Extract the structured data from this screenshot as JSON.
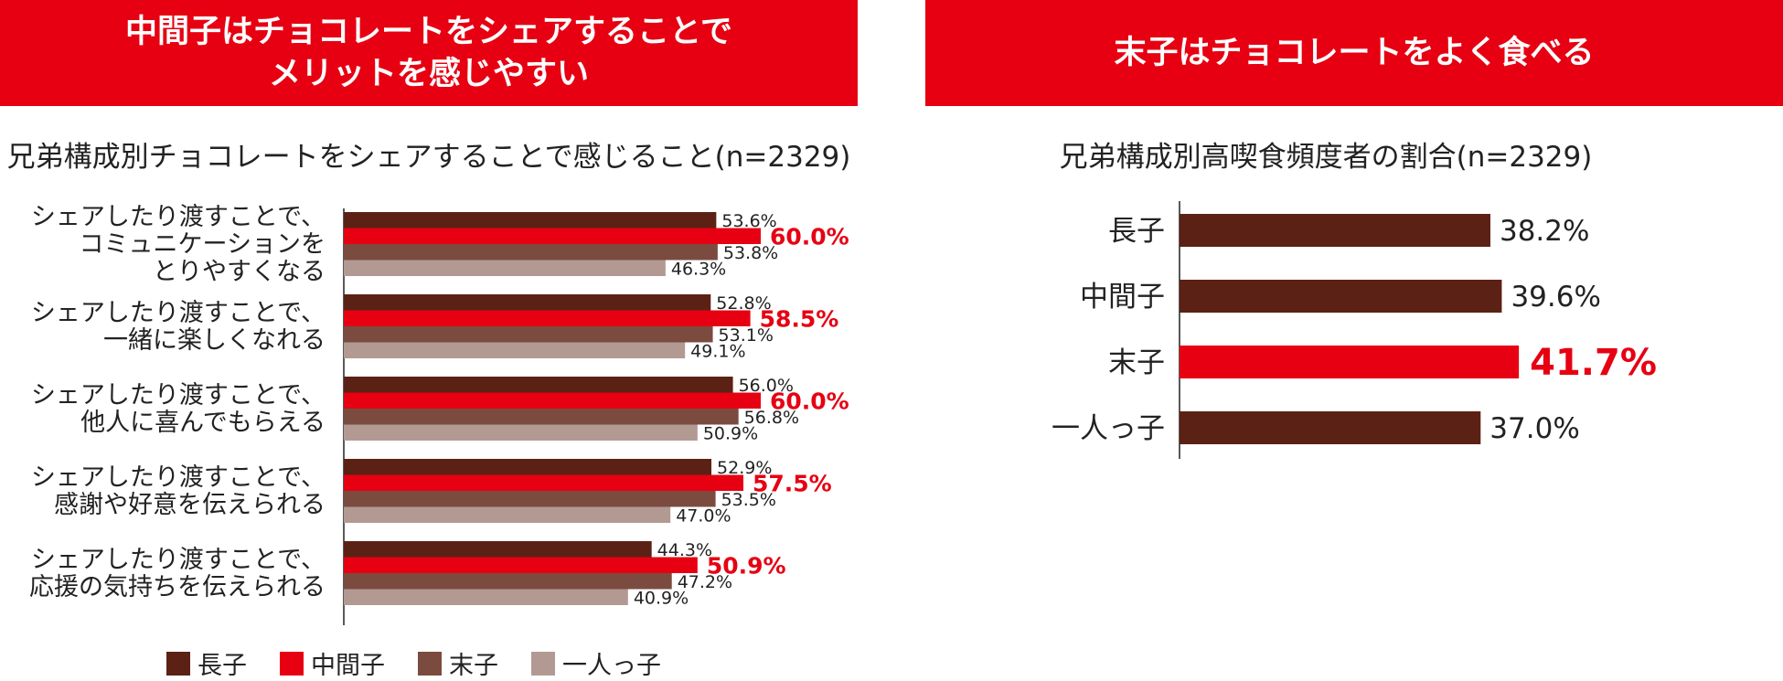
{
  "banners": {
    "left_line1": "中間子はチョコレートをシェアすることで",
    "left_line2": "メリットを感じやすい",
    "right": "末子はチョコレートをよく食べる"
  },
  "chart_data": [
    {
      "type": "bar",
      "orientation": "horizontal",
      "title": "兄弟構成別チョコレートをシェアすることで感じること(n=2329)",
      "categories": [
        [
          "シェアしたり渡すことで、",
          "コミュニケーションを",
          "とりやすくなる"
        ],
        [
          "シェアしたり渡すことで、",
          "一緒に楽しくなれる"
        ],
        [
          "シェアしたり渡すことで、",
          "他人に喜んでもらえる"
        ],
        [
          "シェアしたり渡すことで、",
          "感謝や好意を伝えられる"
        ],
        [
          "シェアしたり渡すことで、",
          "応援の気持ちを伝えられる"
        ]
      ],
      "series": [
        {
          "name": "長子",
          "color": "#5c2115",
          "values": [
            53.6,
            52.8,
            56.0,
            52.9,
            44.3
          ]
        },
        {
          "name": "中間子",
          "color": "#e60012",
          "values": [
            60.0,
            58.5,
            60.0,
            57.5,
            50.9
          ],
          "highlight": true
        },
        {
          "name": "末子",
          "color": "#7b4b40",
          "values": [
            53.8,
            53.1,
            56.8,
            53.5,
            47.2
          ]
        },
        {
          "name": "一人っ子",
          "color": "#b29a93",
          "values": [
            46.3,
            49.1,
            50.9,
            47.0,
            40.9
          ]
        }
      ],
      "value_format": "%",
      "xlim": [
        0,
        100
      ],
      "legend": "bottom"
    },
    {
      "type": "bar",
      "orientation": "horizontal",
      "title": "兄弟構成別高喫食頻度者の割合(n=2329)",
      "categories": [
        "長子",
        "中間子",
        "末子",
        "一人っ子"
      ],
      "values": [
        38.2,
        39.6,
        41.7,
        37.0
      ],
      "colors": [
        "#5c2115",
        "#5c2115",
        "#e60012",
        "#5c2115"
      ],
      "highlight_index": 2,
      "value_format": "%",
      "xlim": [
        0,
        100
      ]
    }
  ]
}
